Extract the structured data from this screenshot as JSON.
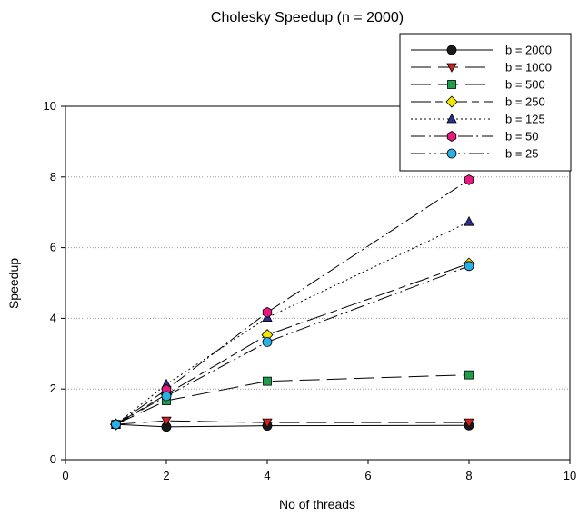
{
  "chart_data": {
    "type": "line",
    "title": "Cholesky Speedup (n = 2000)",
    "xlabel": "No of threads",
    "ylabel": "Speedup",
    "xlim": [
      0,
      10
    ],
    "ylim": [
      0,
      10
    ],
    "xticks": [
      0,
      2,
      4,
      6,
      8,
      10
    ],
    "yticks": [
      0,
      2,
      4,
      6,
      8,
      10
    ],
    "grid": "horizontal dotted",
    "legend_position": "top-right",
    "x": [
      1,
      2,
      4,
      8
    ],
    "series": [
      {
        "name": "b = 2000",
        "values": [
          1.0,
          0.93,
          0.96,
          0.97
        ],
        "color": "#1a1a1a",
        "marker": "circle",
        "dash": "solid"
      },
      {
        "name": "b = 1000",
        "values": [
          1.0,
          1.1,
          1.05,
          1.05
        ],
        "color": "#d62020",
        "marker": "triangle-down",
        "dash": "long-dash"
      },
      {
        "name": "b = 500",
        "values": [
          1.0,
          1.67,
          2.22,
          2.4
        ],
        "color": "#1e9e4a",
        "marker": "square",
        "dash": "long-dash"
      },
      {
        "name": "b = 250",
        "values": [
          1.0,
          1.85,
          3.53,
          5.55
        ],
        "color": "#f5e600",
        "marker": "diamond",
        "dash": "long-dash-short"
      },
      {
        "name": "b = 125",
        "values": [
          1.0,
          2.13,
          4.02,
          6.73
        ],
        "color": "#2b2f8f",
        "marker": "triangle-up",
        "dash": "dotted"
      },
      {
        "name": "b = 50",
        "values": [
          1.0,
          1.98,
          4.17,
          7.92
        ],
        "color": "#e6197f",
        "marker": "hexagon",
        "dash": "dash-dot"
      },
      {
        "name": "b = 25",
        "values": [
          1.0,
          1.8,
          3.33,
          5.48
        ],
        "color": "#2bb0e6",
        "marker": "circle",
        "dash": "dash-dot-dot"
      }
    ]
  }
}
